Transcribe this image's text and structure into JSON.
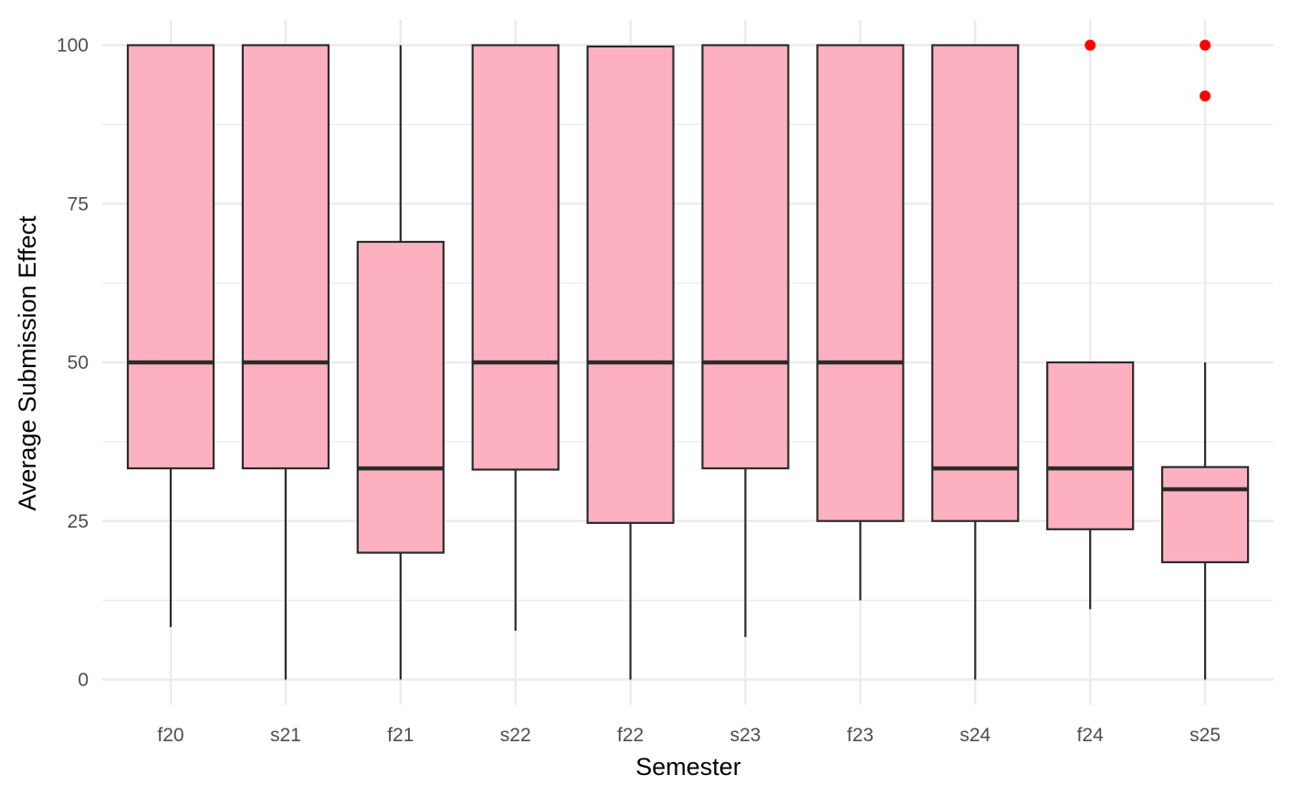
{
  "chart_data": {
    "type": "box",
    "title": "",
    "xlabel": "Semester",
    "ylabel": "Average Submission Effect",
    "ylim": [
      -4,
      104
    ],
    "yticks": [
      0,
      25,
      50,
      75,
      100
    ],
    "grid": true,
    "legend": "none",
    "colors": {
      "box_fill": "#FDB0C0",
      "box_line": "#2b2b2b",
      "outlier": "#FF0000",
      "grid": "#EBEBEB"
    },
    "categories": [
      "f20",
      "s21",
      "f21",
      "s22",
      "f22",
      "s23",
      "f23",
      "s24",
      "f24",
      "s25"
    ],
    "boxes": [
      {
        "category": "f20",
        "lower_whisker": 8.3,
        "q1": 33.3,
        "median": 50,
        "q3": 100,
        "upper_whisker": 100,
        "outliers": []
      },
      {
        "category": "s21",
        "lower_whisker": 0,
        "q1": 33.3,
        "median": 50,
        "q3": 100,
        "upper_whisker": 100,
        "outliers": []
      },
      {
        "category": "f21",
        "lower_whisker": 0,
        "q1": 20,
        "median": 33.3,
        "q3": 69,
        "upper_whisker": 100,
        "outliers": []
      },
      {
        "category": "s22",
        "lower_whisker": 7.7,
        "q1": 33.1,
        "median": 50,
        "q3": 100,
        "upper_whisker": 100,
        "outliers": []
      },
      {
        "category": "f22",
        "lower_whisker": 0,
        "q1": 24.7,
        "median": 50,
        "q3": 99.8,
        "upper_whisker": 99.8,
        "outliers": []
      },
      {
        "category": "s23",
        "lower_whisker": 6.7,
        "q1": 33.3,
        "median": 50,
        "q3": 100,
        "upper_whisker": 100,
        "outliers": []
      },
      {
        "category": "f23",
        "lower_whisker": 12.5,
        "q1": 25,
        "median": 50,
        "q3": 100,
        "upper_whisker": 100,
        "outliers": []
      },
      {
        "category": "s24",
        "lower_whisker": 0,
        "q1": 25,
        "median": 33.3,
        "q3": 100,
        "upper_whisker": 100,
        "outliers": []
      },
      {
        "category": "f24",
        "lower_whisker": 11.1,
        "q1": 23.7,
        "median": 33.3,
        "q3": 50,
        "upper_whisker": 50,
        "outliers": [
          100
        ]
      },
      {
        "category": "s25",
        "lower_whisker": 0,
        "q1": 18.5,
        "median": 30,
        "q3": 33.5,
        "upper_whisker": 50,
        "outliers": [
          100,
          92
        ]
      }
    ]
  }
}
